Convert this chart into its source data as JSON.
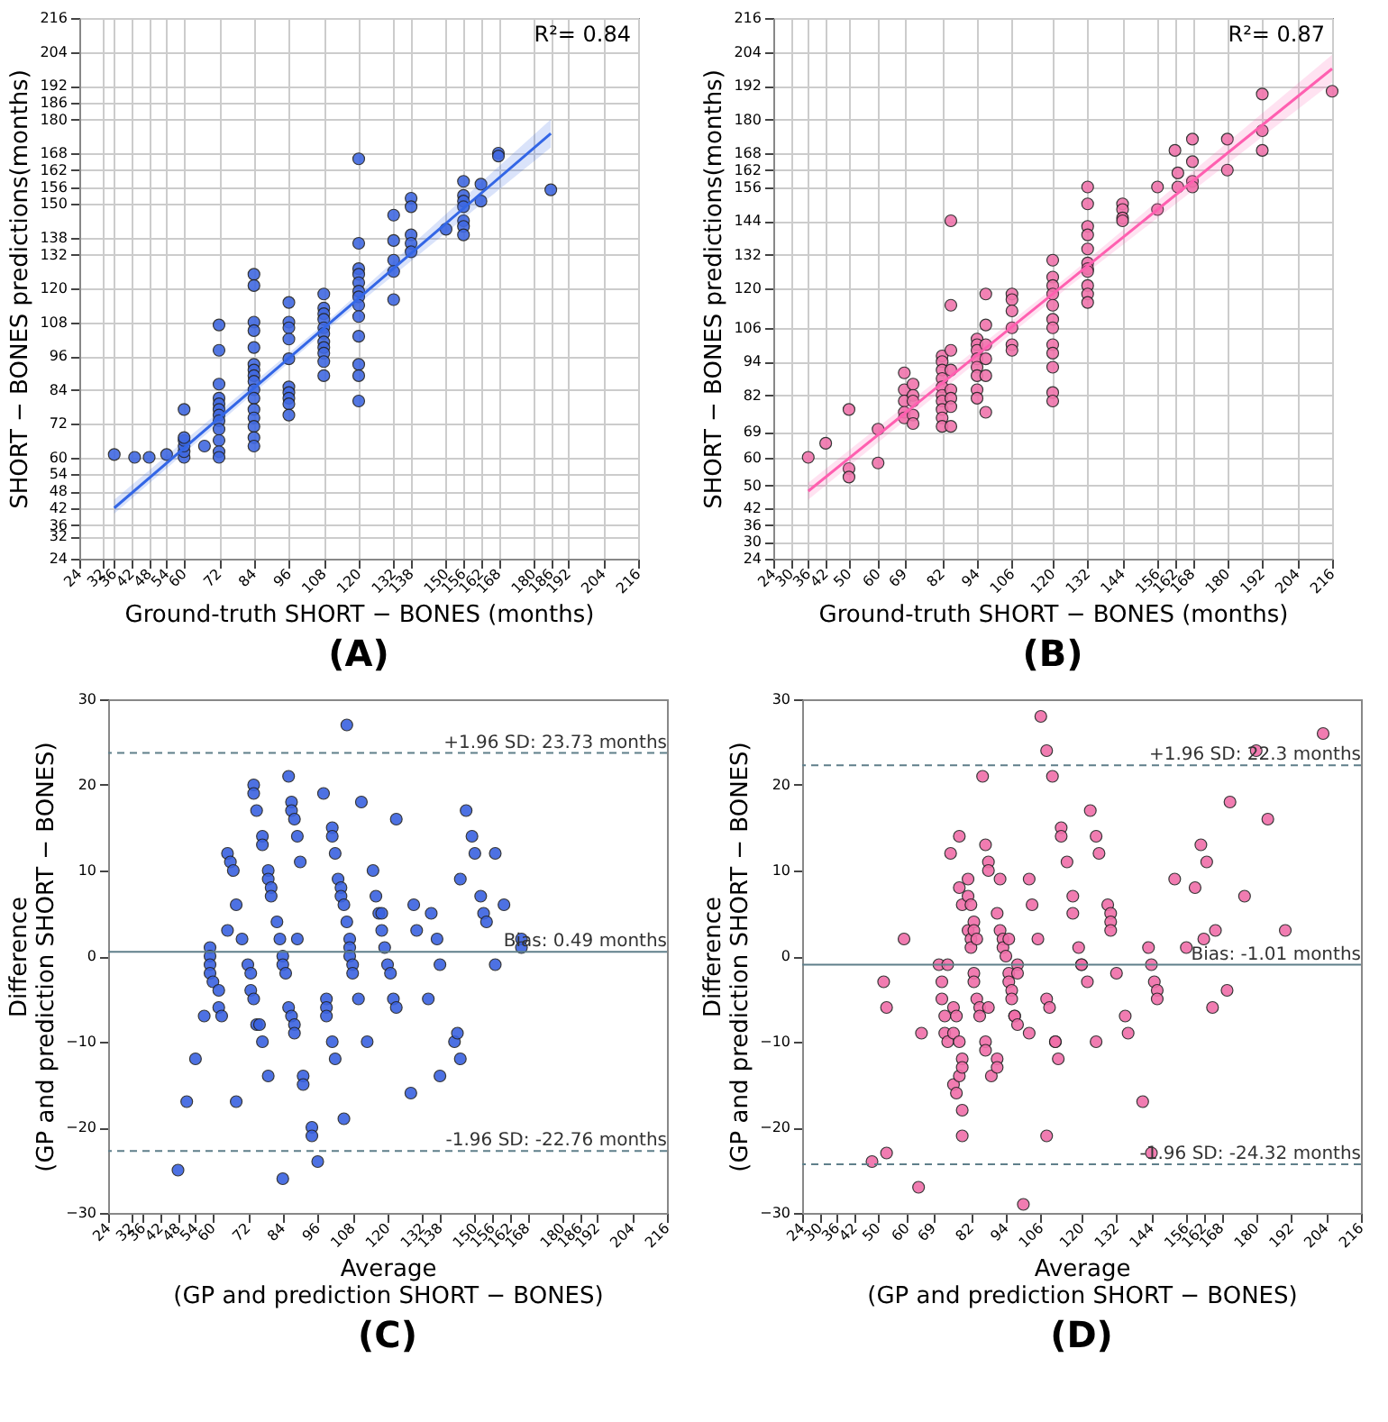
{
  "chart_data": [
    {
      "type": "scatter",
      "title": "(A)",
      "xlabel": "Ground-truth SHORT − BONES (months)",
      "ylabel": "SHORT − BONES predictions(months)",
      "annotations": [
        "R²= 0.84"
      ],
      "xlim": [
        24,
        216
      ],
      "ylim": [
        24,
        216
      ],
      "xticks": [
        24,
        32,
        36,
        42,
        48,
        54,
        60,
        72,
        84,
        96,
        108,
        120,
        132,
        138,
        150,
        156,
        162,
        168,
        180,
        186,
        192,
        204,
        216
      ],
      "yticks": [
        24,
        32,
        36,
        42,
        48,
        54,
        60,
        72,
        84,
        96,
        108,
        120,
        132,
        138,
        150,
        156,
        162,
        168,
        180,
        186,
        192,
        204,
        216
      ],
      "grid": true,
      "marker": "circle",
      "series": [
        {
          "color": "#4169e1",
          "x": [
            36,
            43,
            48,
            54,
            60,
            60,
            60,
            60,
            60,
            60,
            67,
            72,
            72,
            72,
            72,
            72,
            72,
            72,
            72,
            72,
            72,
            72,
            72,
            84,
            84,
            84,
            84,
            84,
            84,
            84,
            84,
            84,
            84,
            84,
            84,
            84,
            84,
            84,
            84,
            96,
            96,
            96,
            96,
            96,
            96,
            96,
            96,
            96,
            96,
            108,
            108,
            108,
            108,
            108,
            108,
            108,
            108,
            108,
            108,
            108,
            120,
            120,
            120,
            120,
            120,
            120,
            120,
            120,
            120,
            120,
            120,
            120,
            120,
            132,
            132,
            132,
            132,
            132,
            138,
            138,
            138,
            138,
            138,
            150,
            156,
            156,
            156,
            156,
            156,
            156,
            156,
            162,
            162,
            168,
            168,
            186
          ],
          "values": [
            61,
            60,
            60,
            61,
            60,
            62,
            64,
            66,
            67,
            77,
            64,
            107,
            98,
            86,
            81,
            79,
            77,
            75,
            73,
            70,
            66,
            62,
            60,
            125,
            121,
            108,
            105,
            99,
            93,
            91,
            89,
            87,
            84,
            81,
            77,
            74,
            71,
            67,
            64,
            115,
            108,
            106,
            102,
            95,
            85,
            83,
            81,
            79,
            75,
            118,
            113,
            111,
            109,
            106,
            104,
            101,
            99,
            97,
            94,
            89,
            166,
            136,
            127,
            125,
            122,
            119,
            117,
            114,
            110,
            103,
            93,
            89,
            80,
            146,
            137,
            130,
            126,
            116,
            152,
            149,
            139,
            136,
            133,
            141,
            158,
            153,
            151,
            149,
            144,
            142,
            139,
            157,
            151,
            168,
            167,
            155
          ]
        },
        {
          "type": "line",
          "marker": "none",
          "color": "#3366e6",
          "x": [
            36,
            111,
            186
          ],
          "values": [
            42,
            108.5,
            175
          ],
          "lower": [
            40,
            107,
            170
          ],
          "upper": [
            45,
            110,
            180
          ]
        }
      ]
    },
    {
      "type": "scatter",
      "title": "(B)",
      "xlabel": "Ground-truth SHORT − BONES (months)",
      "ylabel": "SHORT − BONES predictions(months)",
      "annotations": [
        "R²= 0.87"
      ],
      "xlim": [
        24,
        216
      ],
      "ylim": [
        24,
        216
      ],
      "xticks": [
        24,
        30,
        36,
        42,
        50,
        60,
        69,
        82,
        94,
        106,
        120,
        132,
        144,
        156,
        162,
        168,
        180,
        192,
        204,
        216
      ],
      "yticks": [
        24,
        30,
        36,
        42,
        50,
        60,
        69,
        82,
        94,
        106,
        120,
        132,
        144,
        156,
        162,
        168,
        180,
        192,
        204,
        216
      ],
      "grid": true,
      "marker": "circle",
      "series": [
        {
          "color": "#f075ac",
          "x": [
            36,
            42,
            50,
            50,
            50,
            60,
            60,
            69,
            69,
            69,
            69,
            69,
            72,
            72,
            72,
            72,
            72,
            82,
            82,
            82,
            82,
            82,
            82,
            82,
            82,
            82,
            82,
            85,
            85,
            85,
            85,
            85,
            85,
            85,
            85,
            94,
            94,
            94,
            94,
            94,
            94,
            94,
            94,
            97,
            97,
            97,
            97,
            97,
            97,
            106,
            106,
            106,
            106,
            106,
            106,
            120,
            120,
            120,
            120,
            120,
            120,
            120,
            120,
            120,
            120,
            120,
            120,
            132,
            132,
            132,
            132,
            132,
            132,
            132,
            132,
            132,
            132,
            132,
            144,
            144,
            144,
            144,
            156,
            156,
            162,
            163,
            163,
            168,
            168,
            168,
            168,
            180,
            180,
            192,
            192,
            192,
            216
          ],
          "values": [
            60,
            65,
            77,
            56,
            53,
            70,
            58,
            90,
            84,
            80,
            76,
            74,
            86,
            82,
            80,
            75,
            72,
            96,
            94,
            91,
            88,
            85,
            82,
            80,
            77,
            74,
            71,
            144,
            114,
            98,
            91,
            84,
            81,
            78,
            71,
            102,
            100,
            98,
            95,
            92,
            89,
            84,
            81,
            118,
            107,
            100,
            95,
            89,
            76,
            118,
            116,
            112,
            106,
            100,
            98,
            130,
            124,
            121,
            118,
            114,
            109,
            106,
            100,
            97,
            92,
            83,
            80,
            156,
            150,
            142,
            139,
            134,
            129,
            127,
            126,
            121,
            118,
            115,
            150,
            148,
            145,
            144,
            156,
            148,
            169,
            161,
            156,
            173,
            165,
            158,
            156,
            173,
            162,
            189,
            176,
            169,
            190
          ]
        },
        {
          "type": "line",
          "marker": "none",
          "color": "#ff5fb0",
          "x": [
            36,
            126,
            216
          ],
          "values": [
            48,
            123,
            198
          ],
          "lower": [
            45,
            121,
            193
          ],
          "upper": [
            51,
            125,
            203
          ]
        }
      ]
    },
    {
      "type": "scatter",
      "title": "(C)",
      "xlabel": "Average\n(GP and prediction SHORT − BONES)",
      "ylabel": "Difference\n(GP and prediction SHORT − BONES)",
      "xlim": [
        24,
        216
      ],
      "ylim": [
        -30,
        30
      ],
      "xticks": [
        24,
        32,
        36,
        42,
        48,
        54,
        60,
        72,
        84,
        96,
        108,
        120,
        132,
        138,
        150,
        156,
        162,
        168,
        180,
        186,
        192,
        204,
        216
      ],
      "yticks": [
        -30,
        -20,
        -10,
        0,
        10,
        20,
        30
      ],
      "marker": "circle",
      "ref_lines": [
        {
          "axis": "y",
          "value": 23.73,
          "label": "+1.96 SD: 23.73 months",
          "color": "#5f7f8a",
          "line_style": "dashed"
        },
        {
          "axis": "y",
          "value": 0.49,
          "label": "Bias: 0.49 months",
          "color": "#5f7f8a",
          "line_style": "solid"
        },
        {
          "axis": "y",
          "value": -22.76,
          "label": "-1.96 SD: -22.76 months",
          "color": "#5f7f8a",
          "line_style": "dashed"
        }
      ],
      "series": [
        {
          "color": "#3a62e0",
          "x": [
            48,
            51,
            54,
            57,
            59,
            59,
            59,
            59,
            60,
            62,
            62,
            63,
            65,
            66,
            67,
            68,
            65,
            70,
            72,
            73,
            73,
            74,
            75,
            76,
            77,
            68,
            74,
            74,
            75,
            77,
            77,
            79,
            79,
            80,
            80,
            79,
            82,
            83,
            84,
            84,
            85,
            86,
            87,
            87,
            88,
            89,
            90,
            86,
            87,
            88,
            88,
            84,
            91,
            91,
            94,
            94,
            96,
            89,
            98,
            99,
            99,
            99,
            101,
            101,
            102,
            103,
            104,
            104,
            105,
            106,
            101,
            102,
            105,
            106,
            107,
            107,
            107,
            108,
            108,
            110,
            111,
            113,
            115,
            116,
            117,
            118,
            118,
            119,
            120,
            121,
            122,
            123,
            123,
            128,
            129,
            130,
            134,
            135,
            137,
            138,
            138,
            143,
            144,
            145,
            145,
            147,
            149,
            150,
            152,
            153,
            154,
            157,
            157,
            160,
            166,
            166
          ],
          "values": [
            -25,
            -17,
            -12,
            -7,
            1,
            0,
            -1,
            -2,
            -3,
            -4,
            -6,
            -7,
            12,
            11,
            10,
            6,
            3,
            2,
            -1,
            -2,
            -4,
            -5,
            -8,
            -8,
            -10,
            -17,
            20,
            19,
            17,
            14,
            13,
            10,
            9,
            8,
            7,
            -14,
            4,
            2,
            0,
            -1,
            -2,
            21,
            18,
            17,
            16,
            14,
            11,
            -6,
            -7,
            -8,
            -9,
            -26,
            -14,
            -15,
            -20,
            -21,
            -24,
            2,
            19,
            -5,
            -6,
            -7,
            15,
            14,
            12,
            9,
            8,
            7,
            6,
            4,
            -10,
            -12,
            -19,
            27,
            2,
            1,
            0,
            -1,
            -2,
            -5,
            18,
            -10,
            10,
            7,
            5,
            5,
            3,
            1,
            -1,
            -2,
            -5,
            -6,
            16,
            -16,
            6,
            3,
            -5,
            5,
            2,
            -1,
            -14,
            -10,
            -9,
            9,
            -12,
            17,
            14,
            12,
            7,
            5,
            4,
            12,
            -1,
            6,
            2,
            1
          ]
        }
      ]
    },
    {
      "type": "scatter",
      "title": "(D)",
      "xlabel": "Average\n(GP and prediction SHORT − BONES)",
      "ylabel": "Difference\n(GP and prediction SHORT − BONES)",
      "xlim": [
        24,
        216
      ],
      "ylim": [
        -30,
        30
      ],
      "xticks": [
        24,
        30,
        36,
        42,
        50,
        60,
        69,
        82,
        94,
        106,
        120,
        132,
        144,
        156,
        162,
        168,
        180,
        192,
        204,
        216
      ],
      "yticks": [
        -30,
        -20,
        -10,
        0,
        10,
        20,
        30
      ],
      "marker": "circle",
      "ref_lines": [
        {
          "axis": "y",
          "value": 22.3,
          "label": "+1.96 SD: 22.3 months",
          "color": "#5f7f8a",
          "line_style": "dashed"
        },
        {
          "axis": "y",
          "value": -1.01,
          "label": "Bias: -1.01 months",
          "color": "#5f7f8a",
          "line_style": "solid"
        },
        {
          "axis": "y",
          "value": -24.32,
          "label": "-1.96 SD: -24.32 months",
          "color": "#5f7f8a",
          "line_style": "dashed"
        }
      ],
      "series": [
        {
          "color": "#f06ea9",
          "x": [
            48,
            52,
            53,
            53,
            59,
            64,
            65,
            71,
            72,
            72,
            74,
            73,
            73,
            74,
            75,
            76,
            77,
            76,
            76,
            77,
            78,
            78,
            78,
            78,
            79,
            79,
            79,
            79,
            79,
            81,
            81,
            81,
            82,
            82,
            82,
            83,
            83,
            83,
            83,
            84,
            84,
            85,
            85,
            86,
            87,
            87,
            88,
            88,
            87,
            88,
            89,
            91,
            91,
            91,
            92,
            92,
            93,
            93,
            94,
            95,
            95,
            95,
            96,
            96,
            97,
            97,
            98,
            98,
            98,
            100,
            102,
            102,
            103,
            105,
            106,
            108,
            108,
            108,
            109,
            110,
            111,
            111,
            112,
            113,
            113,
            115,
            117,
            117,
            119,
            120,
            120,
            122,
            123,
            125,
            125,
            126,
            129,
            130,
            130,
            130,
            132,
            135,
            136,
            141,
            143,
            144,
            144,
            145,
            146,
            146,
            152,
            156,
            159,
            161,
            162,
            163,
            165,
            166,
            170,
            171,
            176,
            180,
            184,
            190,
            203
          ],
          "values": [
            -24,
            -3,
            -6,
            -23,
            2,
            -27,
            -9,
            -1,
            -3,
            -5,
            -1,
            -7,
            -9,
            -10,
            12,
            -6,
            -7,
            -9,
            -15,
            -16,
            -10,
            -14,
            14,
            8,
            6,
            -12,
            -13,
            -18,
            -21,
            9,
            3,
            7,
            2,
            6,
            1,
            4,
            -2,
            -3,
            3,
            2,
            -5,
            -6,
            -7,
            21,
            -10,
            13,
            11,
            10,
            -11,
            -6,
            -14,
            -12,
            5,
            -13,
            3,
            9,
            2,
            1,
            0,
            -2,
            -3,
            2,
            -4,
            -5,
            -7,
            -7,
            -8,
            -1,
            -2,
            -29,
            9,
            -9,
            6,
            2,
            28,
            -21,
            24,
            -5,
            -6,
            21,
            -10,
            -10,
            -12,
            15,
            14,
            11,
            7,
            5,
            1,
            -1,
            -1,
            -3,
            17,
            14,
            -10,
            12,
            6,
            5,
            4,
            3,
            -2,
            -7,
            -9,
            -17,
            1,
            -1,
            -23,
            -3,
            -4,
            -5,
            9,
            1,
            8,
            13,
            2,
            11,
            -6,
            3,
            -4,
            18,
            7,
            24,
            16,
            3,
            26
          ]
        }
      ]
    }
  ]
}
